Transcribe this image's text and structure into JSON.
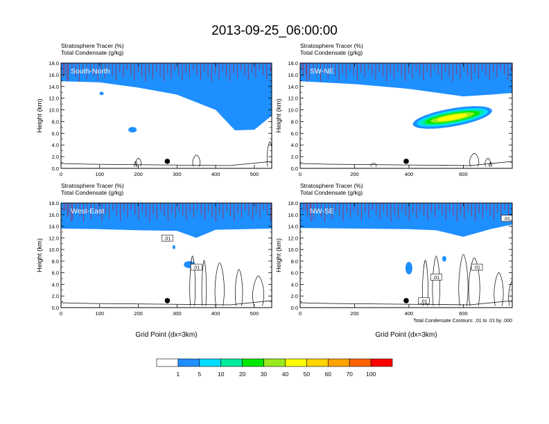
{
  "title": "2013-09-25_06:00:00",
  "legend": {
    "colors": [
      "#ffffff",
      "#1e8fff",
      "#00ddff",
      "#00ea9a",
      "#00e800",
      "#9aea1f",
      "#ffff00",
      "#ffd400",
      "#ffa300",
      "#ff6300",
      "#ff0000"
    ],
    "labels": [
      "1",
      "5",
      "10",
      "20",
      "30",
      "40",
      "50",
      "60",
      "70",
      "100"
    ]
  },
  "chart_data": [
    {
      "type": "heatmap",
      "label": "South-North",
      "title_line1": "Stratosphere Tracer   (%)",
      "title_line2": "Total Condensate   (g/kg)",
      "ylabel": "Height (km)",
      "xlabel": "",
      "ylim": [
        0,
        18
      ],
      "yticks": [
        "0.0",
        "2.0",
        "4.0",
        "6.0",
        "8.0",
        "10.0",
        "12.0",
        "14.0",
        "16.0",
        "18.0"
      ],
      "xlim": [
        0,
        545
      ],
      "xticks": [
        "0",
        "100",
        "200",
        "300",
        "400",
        "500"
      ],
      "tracer_base_km": [
        [
          0,
          14.9
        ],
        [
          100,
          14.7
        ],
        [
          200,
          13.8
        ],
        [
          300,
          12.6
        ],
        [
          400,
          10.0
        ],
        [
          450,
          6.5
        ],
        [
          500,
          6.6
        ],
        [
          545,
          9.0
        ]
      ],
      "marker": {
        "x": 275,
        "height_km": 1.2
      },
      "contour_labels": [],
      "note": ""
    },
    {
      "type": "heatmap",
      "label": "SW-NE",
      "title_line1": "Stratosphere Tracer   (%)",
      "title_line2": "Total Condensate   (g/kg)",
      "ylabel": "Height (km)",
      "xlabel": "",
      "ylim": [
        0,
        18
      ],
      "yticks": [
        "0.0",
        "2.0",
        "4.0",
        "6.0",
        "8.0",
        "10.0",
        "12.0",
        "14.0",
        "16.0",
        "18.0"
      ],
      "xlim": [
        0,
        780
      ],
      "xticks": [
        "0",
        "200",
        "400",
        "600"
      ],
      "tracer_base_km": [
        [
          0,
          14.9
        ],
        [
          200,
          14.4
        ],
        [
          400,
          13.6
        ],
        [
          600,
          12.3
        ],
        [
          700,
          12.6
        ],
        [
          780,
          12.9
        ]
      ],
      "marker": {
        "x": 390,
        "height_km": 1.2
      },
      "contour_labels": [],
      "note": ""
    },
    {
      "type": "heatmap",
      "label": "West-East",
      "title_line1": "Stratosphere Tracer   (%)",
      "title_line2": "Total Condensate   (g/kg)",
      "ylabel": "Height (km)",
      "xlabel": "Grid Point (dx=3km)",
      "ylim": [
        0,
        18
      ],
      "yticks": [
        "0.0",
        "2.0",
        "4.0",
        "6.0",
        "8.0",
        "10.0",
        "12.0",
        "14.0",
        "16.0",
        "18.0"
      ],
      "xlim": [
        0,
        545
      ],
      "xticks": [
        "0",
        "100",
        "200",
        "300",
        "400",
        "500"
      ],
      "tracer_base_km": [
        [
          0,
          13.6
        ],
        [
          100,
          13.5
        ],
        [
          200,
          13.3
        ],
        [
          300,
          13.2
        ],
        [
          350,
          12.0
        ],
        [
          400,
          13.4
        ],
        [
          545,
          13.6
        ]
      ],
      "marker": {
        "x": 275,
        "height_km": 1.2
      },
      "contour_labels": [
        ".01",
        ".01"
      ],
      "note": ""
    },
    {
      "type": "heatmap",
      "label": "NW-SE",
      "title_line1": "Stratosphere Tracer   (%)",
      "title_line2": "Total Condensate   (g/kg)",
      "ylabel": "Height (km)",
      "xlabel": "Grid Point (dx=3km)",
      "ylim": [
        0,
        18
      ],
      "yticks": [
        "0.0",
        "2.0",
        "4.0",
        "6.0",
        "8.0",
        "10.0",
        "12.0",
        "14.0",
        "16.0",
        "18.0"
      ],
      "xlim": [
        0,
        780
      ],
      "xticks": [
        "0",
        "200",
        "400",
        "600"
      ],
      "tracer_base_km": [
        [
          0,
          13.7
        ],
        [
          200,
          13.6
        ],
        [
          400,
          13.5
        ],
        [
          500,
          13.3
        ],
        [
          600,
          12.2
        ],
        [
          700,
          13.5
        ],
        [
          780,
          14.3
        ]
      ],
      "marker": {
        "x": 390,
        "height_km": 1.2
      },
      "contour_labels": [
        ".01",
        ".01",
        ".01",
        ".01"
      ],
      "note": "Total Condensate Contours: .01 to .01 by .000"
    }
  ]
}
